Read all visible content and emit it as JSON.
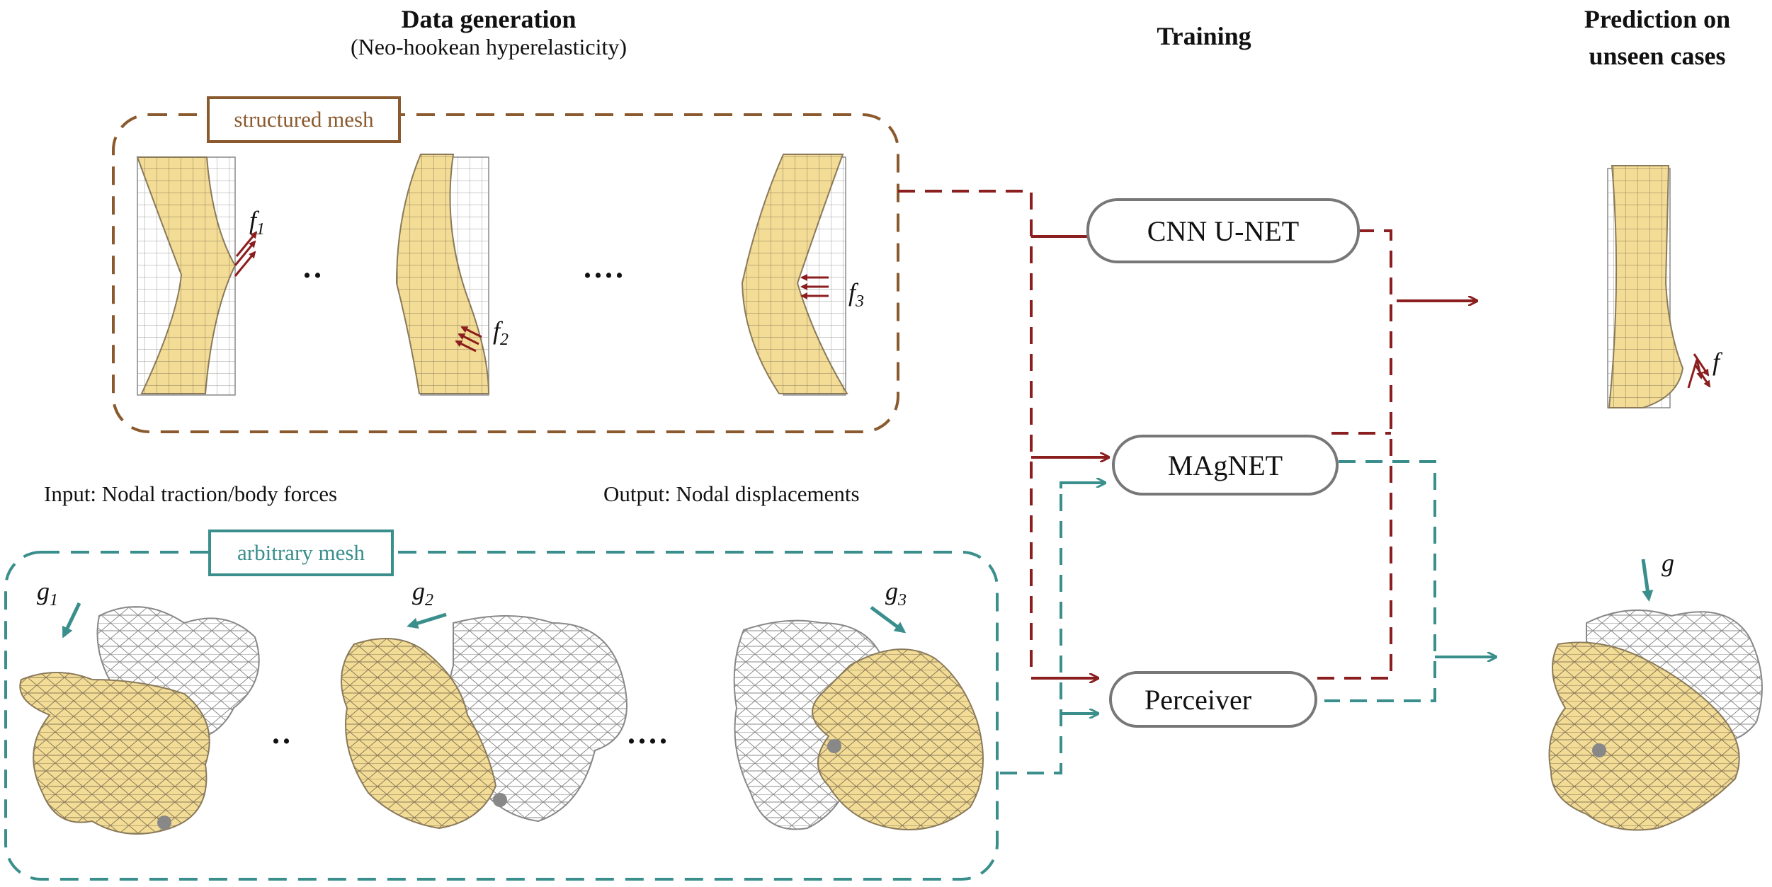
{
  "headers": {
    "data_generation": "Data generation",
    "data_generation_sub": "(Neo-hookean hyperelasticity)",
    "training": "Training",
    "prediction_line1": "Prediction on",
    "prediction_line2": "unseen cases"
  },
  "mesh_tags": {
    "structured": "structured mesh",
    "arbitrary": "arbitrary mesh"
  },
  "captions": {
    "input": "Input: Nodal traction/body forces",
    "output": "Output: Nodal displacements"
  },
  "models": [
    "CNN U-NET",
    "MAgNET",
    "Perceiver"
  ],
  "forces": {
    "f1": {
      "base": "f",
      "sub": "1"
    },
    "f2": {
      "base": "f",
      "sub": "2"
    },
    "f3": {
      "base": "f",
      "sub": "3"
    },
    "f": {
      "base": "f",
      "sub": ""
    },
    "g1": {
      "base": "g",
      "sub": "1"
    },
    "g2": {
      "base": "g",
      "sub": "2"
    },
    "g3": {
      "base": "g",
      "sub": "3"
    },
    "g": {
      "base": "g",
      "sub": ""
    }
  },
  "ellipsis_short": "..",
  "ellipsis_long": "....",
  "colors": {
    "structured": "#8a5a2e",
    "arbitrary": "#3a8f8c",
    "force_red": "#8b1e1e",
    "mesh_fill": "#f3dc95",
    "mesh_line": "#8a8a8a",
    "model_border": "#777777"
  }
}
